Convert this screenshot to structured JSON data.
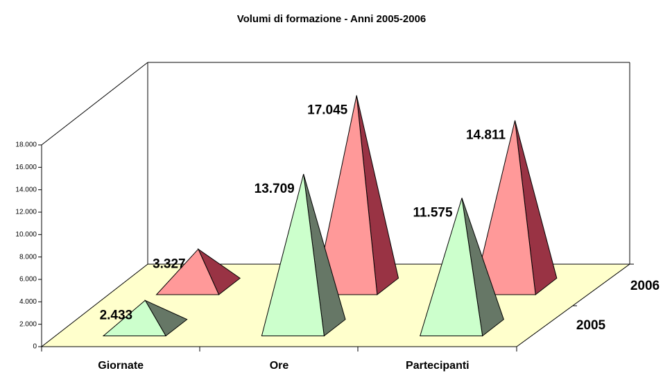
{
  "chart_data": {
    "type": "pyramid3d",
    "title": "Volumi di formazione - Anni 2005-2006",
    "categories": [
      "Giornate",
      "Ore",
      "Partecipanti"
    ],
    "series": [
      {
        "name": "2005",
        "color": "#ccffcc",
        "side_color": "#667766",
        "values": [
          2433,
          13709,
          11575
        ],
        "value_labels": [
          "2.433",
          "13.709",
          "11.575"
        ]
      },
      {
        "name": "2006",
        "color": "#ff9999",
        "side_color": "#993344",
        "values": [
          3327,
          17045,
          14811
        ],
        "value_labels": [
          "3.327",
          "17.045",
          "14.811"
        ]
      }
    ],
    "ylim": [
      0,
      18000
    ],
    "yticks": [
      {
        "value": 0,
        "label": "0"
      },
      {
        "value": 2000,
        "label": "2.000"
      },
      {
        "value": 4000,
        "label": "4.000"
      },
      {
        "value": 6000,
        "label": "6.000"
      },
      {
        "value": 8000,
        "label": "8.000"
      },
      {
        "value": 10000,
        "label": "10.000"
      },
      {
        "value": 12000,
        "label": "12.000"
      },
      {
        "value": 14000,
        "label": "14.000"
      },
      {
        "value": 16000,
        "label": "16.000"
      },
      {
        "value": 18000,
        "label": "18.000"
      }
    ]
  }
}
